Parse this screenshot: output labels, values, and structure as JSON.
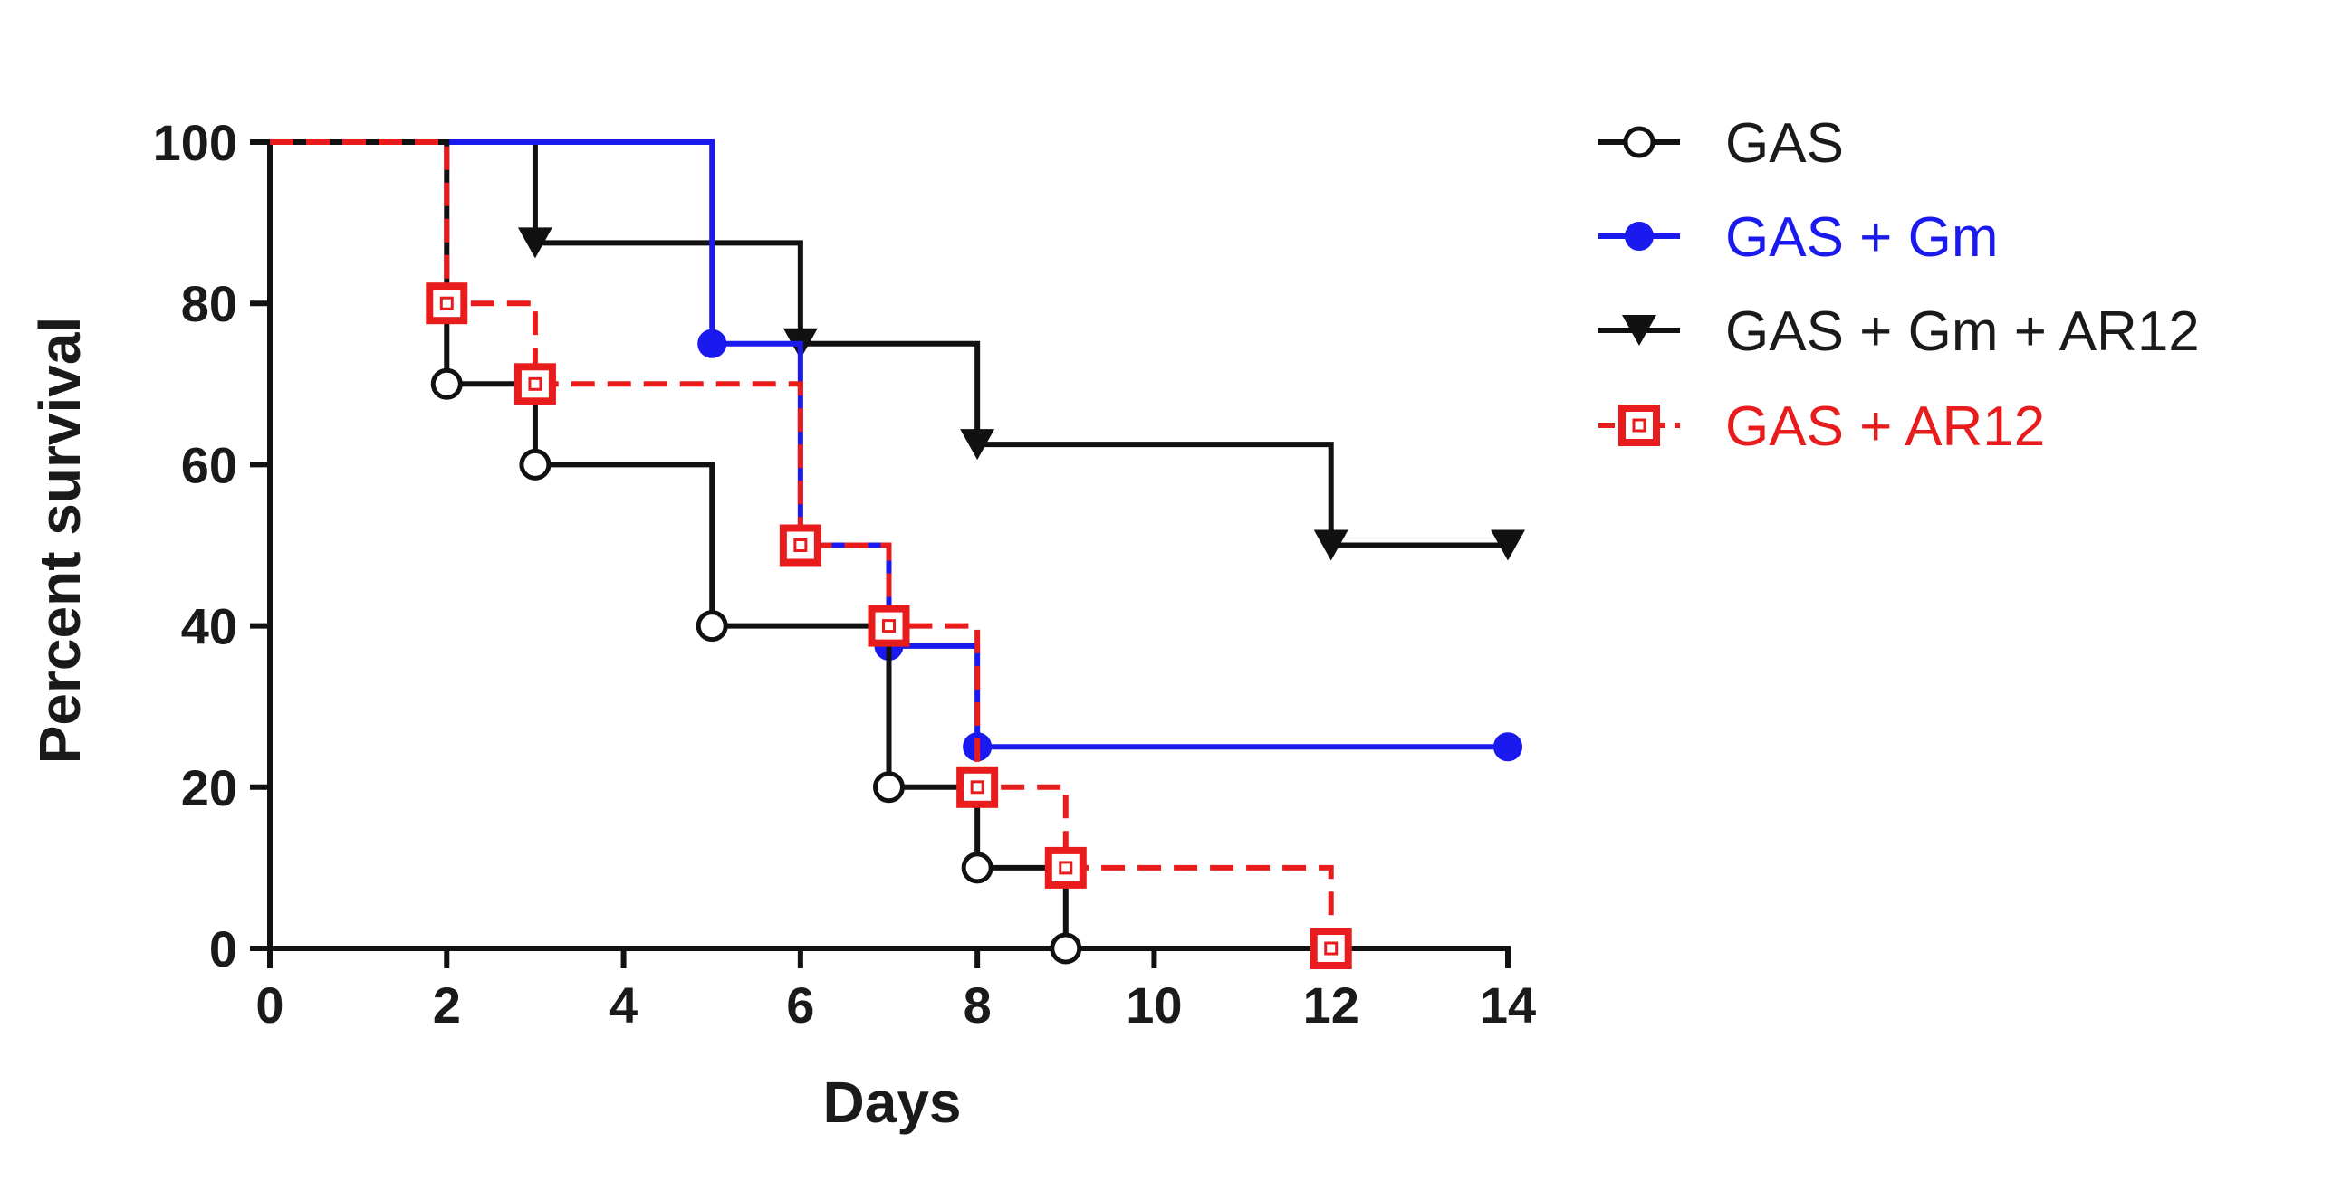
{
  "chart_data": {
    "type": "line",
    "subtype": "kaplan-meier-survival",
    "title": "",
    "xlabel": "Days",
    "ylabel": "Percent survival",
    "xlim": [
      0,
      14
    ],
    "ylim": [
      0,
      100
    ],
    "xticks": [
      0,
      2,
      4,
      6,
      8,
      10,
      12,
      14
    ],
    "yticks": [
      0,
      20,
      40,
      60,
      80,
      100
    ],
    "grid": false,
    "legend_position": "top-right",
    "series": [
      {
        "name": "GAS",
        "color": "#111111",
        "line_style": "solid",
        "marker": "open-circle",
        "steps": [
          [
            0,
            100
          ],
          [
            2,
            70
          ],
          [
            3,
            60
          ],
          [
            5,
            40
          ],
          [
            7,
            20
          ],
          [
            8,
            10
          ],
          [
            9,
            0
          ]
        ]
      },
      {
        "name": "GAS + Gm",
        "color": "#1a1aee",
        "line_style": "solid",
        "marker": "filled-circle",
        "steps": [
          [
            0,
            100
          ],
          [
            5,
            75
          ],
          [
            6,
            50
          ],
          [
            7,
            37.5
          ],
          [
            8,
            25
          ]
        ],
        "end_x": 14
      },
      {
        "name": "GAS + Gm + AR12",
        "color": "#111111",
        "line_style": "solid",
        "marker": "filled-triangle-down",
        "steps": [
          [
            0,
            100
          ],
          [
            3,
            87.5
          ],
          [
            6,
            75
          ],
          [
            8,
            62.5
          ],
          [
            12,
            50
          ]
        ],
        "end_x": 14
      },
      {
        "name": "GAS + AR12",
        "color": "#e81c1c",
        "line_style": "dashed",
        "marker": "open-square",
        "steps": [
          [
            0,
            100
          ],
          [
            2,
            80
          ],
          [
            3,
            70
          ],
          [
            6,
            50
          ],
          [
            7,
            40
          ],
          [
            8,
            20
          ],
          [
            9,
            10
          ],
          [
            12,
            0
          ]
        ]
      }
    ]
  }
}
